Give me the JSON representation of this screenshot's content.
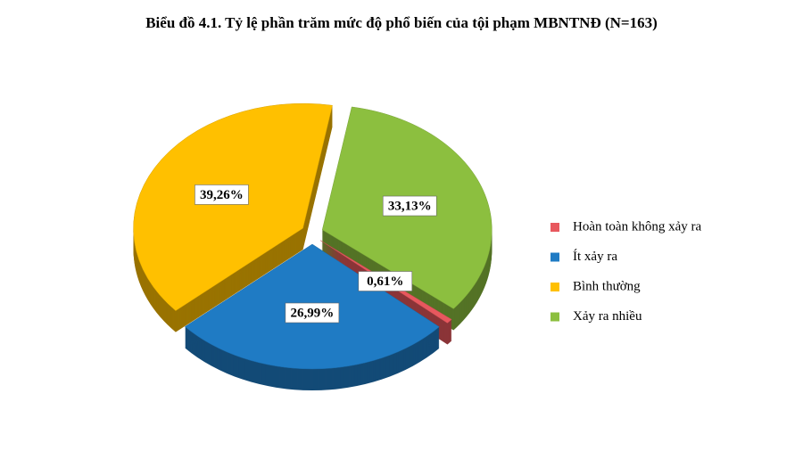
{
  "chart_data": {
    "type": "pie",
    "title": "Biểu đồ 4.1. Tỷ lệ phần trăm mức độ phổ biến của tội phạm MBNTNĐ (N=163)",
    "categories": [
      "Hoàn toàn không xảy ra",
      "Ít xảy ra",
      "Bình thường",
      "Xảy ra nhiều"
    ],
    "values": [
      0.61,
      26.99,
      39.26,
      33.13
    ],
    "value_labels": [
      "0,61%",
      "26,99%",
      "39,26%",
      "33,13%"
    ],
    "colors": [
      "#e8585e",
      "#1f7bc4",
      "#ffc000",
      "#8cbf3f"
    ]
  }
}
